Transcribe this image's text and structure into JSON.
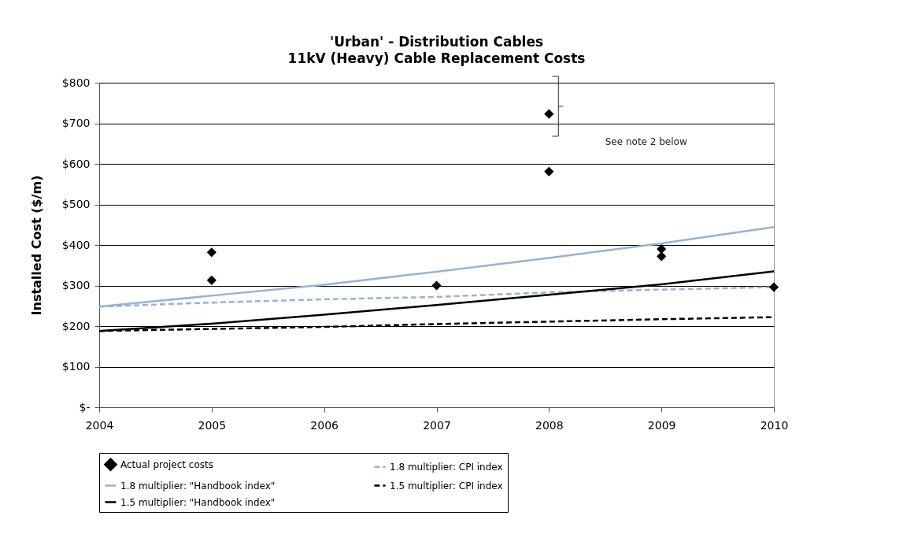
{
  "chart_data": {
    "type": "line",
    "title": "'Urban' - Distribution Cables",
    "subtitle": "11kV (Heavy) Cable Replacement Costs",
    "ylabel": "Installed Cost ($/m)",
    "xlim": [
      2004,
      2010
    ],
    "xticks": [
      2004,
      2005,
      2006,
      2007,
      2008,
      2009,
      2010
    ],
    "ylim": [
      0,
      800
    ],
    "yticks": [
      {
        "value": 0,
        "label": "$-"
      },
      {
        "value": 100,
        "label": "$100"
      },
      {
        "value": 200,
        "label": "$200"
      },
      {
        "value": 300,
        "label": "$300"
      },
      {
        "value": 400,
        "label": "$400"
      },
      {
        "value": 500,
        "label": "$500"
      },
      {
        "value": 600,
        "label": "$600"
      },
      {
        "value": 700,
        "label": "$700"
      },
      {
        "value": 800,
        "label": "$800"
      }
    ],
    "grid": "y",
    "legend": "bottom",
    "annotations": [
      "See note 2 below"
    ],
    "series": [
      {
        "name": "Actual project costs",
        "type": "scatter",
        "marker": "diamond",
        "color": "#000000",
        "x": [
          2005,
          2005,
          2007,
          2008,
          2008,
          2009,
          2009,
          2010
        ],
        "values": [
          382,
          313,
          300,
          723,
          581,
          390,
          372,
          296
        ]
      },
      {
        "name": "1.8 multiplier: CPI index",
        "line_style": "dashed",
        "color": "#95b3d7",
        "x": [
          2004,
          2005,
          2006,
          2007,
          2008,
          2009,
          2010
        ],
        "values": [
          248,
          258,
          266,
          272,
          283,
          290,
          296
        ]
      },
      {
        "name": "1.8 multiplier: \"Handbook index\"",
        "line_style": "solid",
        "color": "#95b3d7",
        "x": [
          2004,
          2005,
          2006,
          2007,
          2008,
          2009,
          2010
        ],
        "values": [
          248,
          275,
          302,
          334,
          368,
          404,
          444
        ]
      },
      {
        "name": "1.5 multiplier: CPI index",
        "line_style": "dashed",
        "color": "#000000",
        "x": [
          2004,
          2005,
          2006,
          2007,
          2008,
          2009,
          2010
        ],
        "values": [
          188,
          193,
          198,
          205,
          211,
          217,
          222
        ]
      },
      {
        "name": "1.5 multiplier: \"Handbook index\"",
        "line_style": "solid",
        "color": "#000000",
        "x": [
          2004,
          2005,
          2006,
          2007,
          2008,
          2009,
          2010
        ],
        "values": [
          188,
          206,
          228,
          252,
          277,
          303,
          335
        ]
      }
    ]
  }
}
